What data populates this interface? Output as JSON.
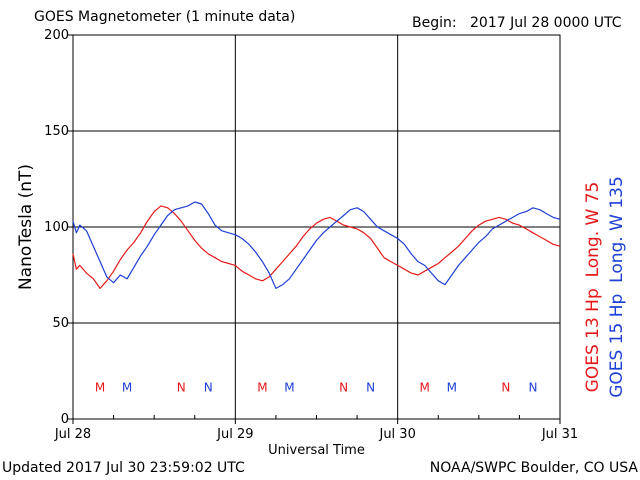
{
  "header": {
    "title": "GOES Magnetometer (1 minute data)",
    "begin_label": "Begin:",
    "begin_value": "2017 Jul 28 0000 UTC"
  },
  "footer": {
    "updated": "Updated 2017 Jul 30 23:59:02 UTC",
    "credit": "NOAA/SWPC Boulder, CO USA"
  },
  "colors": {
    "goes13": "#e41a1a",
    "goes15": "#1f3fd6",
    "axis": "#000000"
  },
  "chart_data": {
    "type": "line",
    "title": "GOES Magnetometer (1 minute data)",
    "xlabel": "Universal Time",
    "ylabel": "NanoTesla (nT)",
    "ylim": [
      0,
      200
    ],
    "xlim_hours": [
      0,
      72
    ],
    "x_unit": "hours since 2017 Jul 28 0000 UTC",
    "yticks": [
      0,
      50,
      100,
      150,
      200
    ],
    "xticks": [
      {
        "hour": 0,
        "label": "Jul 28"
      },
      {
        "hour": 24,
        "label": "Jul 29"
      },
      {
        "hour": 48,
        "label": "Jul 30"
      },
      {
        "hour": 72,
        "label": "Jul 31"
      }
    ],
    "grid": true,
    "series": [
      {
        "name": "GOES 13 Hp  Long. W 75",
        "color": "#e41a1a",
        "x": [
          0,
          0.5,
          1,
          2,
          3,
          4,
          5,
          6,
          7,
          8,
          9,
          10,
          11,
          12,
          13,
          14,
          15,
          16,
          17,
          18,
          19,
          20,
          21,
          22,
          23,
          24,
          25,
          26,
          27,
          28,
          29,
          30,
          31,
          32,
          33,
          34,
          35,
          36,
          37,
          38,
          39,
          40,
          41,
          42,
          43,
          44,
          45,
          46,
          47,
          48,
          49,
          50,
          51,
          52,
          53,
          54,
          55,
          56,
          57,
          58,
          59,
          60,
          61,
          62,
          63,
          64,
          65,
          66,
          67,
          68,
          69,
          70,
          71,
          72
        ],
        "values": [
          86,
          78,
          80,
          76,
          73,
          68,
          72,
          77,
          83,
          88,
          92,
          97,
          103,
          108,
          111,
          110,
          107,
          103,
          98,
          93,
          89,
          86,
          84,
          82,
          81,
          80,
          77,
          75,
          73,
          72,
          74,
          78,
          82,
          86,
          90,
          95,
          99,
          102,
          104,
          105,
          103,
          101,
          100,
          99,
          97,
          94,
          89,
          84,
          82,
          80,
          78,
          76,
          75,
          77,
          79,
          81,
          84,
          87,
          90,
          94,
          98,
          101,
          103,
          104,
          105,
          104,
          102,
          101,
          99,
          97,
          95,
          93,
          91,
          90
        ]
      },
      {
        "name": "GOES 15 Hp  Long. W 135",
        "color": "#1f3fd6",
        "x": [
          0,
          0.5,
          1,
          2,
          3,
          4,
          5,
          6,
          7,
          8,
          9,
          10,
          11,
          12,
          13,
          14,
          15,
          16,
          17,
          18,
          19,
          20,
          21,
          22,
          23,
          24,
          25,
          26,
          27,
          28,
          29,
          30,
          31,
          32,
          33,
          34,
          35,
          36,
          37,
          38,
          39,
          40,
          41,
          42,
          43,
          44,
          45,
          46,
          47,
          48,
          49,
          50,
          51,
          52,
          53,
          54,
          55,
          56,
          57,
          58,
          59,
          60,
          61,
          62,
          63,
          64,
          65,
          66,
          67,
          68,
          69,
          70,
          71,
          72
        ],
        "values": [
          103,
          97,
          101,
          98,
          90,
          82,
          74,
          71,
          75,
          73,
          79,
          85,
          90,
          96,
          101,
          106,
          109,
          110,
          111,
          113,
          112,
          107,
          101,
          98,
          97,
          96,
          94,
          91,
          87,
          82,
          76,
          68,
          70,
          73,
          78,
          83,
          88,
          93,
          97,
          100,
          103,
          106,
          109,
          110,
          108,
          104,
          100,
          98,
          96,
          94,
          91,
          86,
          82,
          80,
          76,
          72,
          70,
          75,
          80,
          84,
          88,
          92,
          95,
          99,
          101,
          103,
          105,
          107,
          108,
          110,
          109,
          107,
          105,
          104
        ]
      }
    ],
    "markers": [
      {
        "label": "M",
        "hour": 4,
        "series": 0
      },
      {
        "label": "M",
        "hour": 8,
        "series": 1
      },
      {
        "label": "N",
        "hour": 16,
        "series": 0
      },
      {
        "label": "N",
        "hour": 20,
        "series": 1
      },
      {
        "label": "M",
        "hour": 28,
        "series": 0
      },
      {
        "label": "M",
        "hour": 32,
        "series": 1
      },
      {
        "label": "N",
        "hour": 40,
        "series": 0
      },
      {
        "label": "N",
        "hour": 44,
        "series": 1
      },
      {
        "label": "M",
        "hour": 52,
        "series": 0
      },
      {
        "label": "M",
        "hour": 56,
        "series": 1
      },
      {
        "label": "N",
        "hour": 64,
        "series": 0
      },
      {
        "label": "N",
        "hour": 68,
        "series": 1
      }
    ],
    "marker_level": 17
  }
}
